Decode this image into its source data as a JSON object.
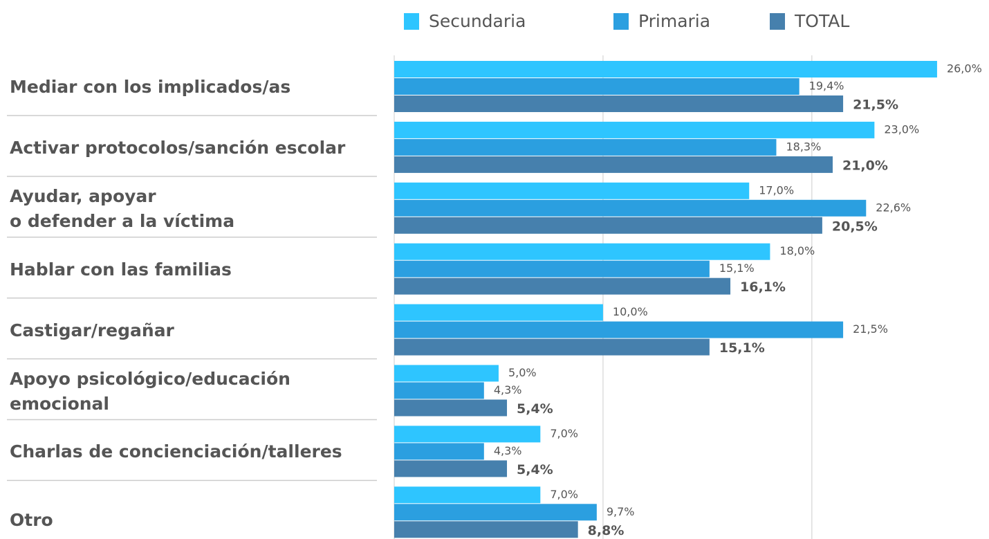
{
  "chart_data": {
    "type": "bar",
    "orientation": "horizontal",
    "categories": [
      "Mediar con los implicados/as",
      "Activar protocolos/sanción escolar",
      "Ayudar, apoyar\no defender a la víctima",
      "Hablar con las familias",
      "Castigar/regañar",
      "Apoyo psicológico/educación\nemocional",
      "Charlas de concienciación/talleres",
      "Otro"
    ],
    "series": [
      {
        "name": "Secundaria",
        "color": "#2ec5ff",
        "values": [
          26.0,
          23.0,
          17.0,
          18.0,
          10.0,
          5.0,
          7.0,
          7.0
        ],
        "value_labels": [
          "26,0%",
          "23,0%",
          "17,0%",
          "18,0%",
          "10,0%",
          "5,0%",
          "7,0%",
          "7,0%"
        ]
      },
      {
        "name": "Primaria",
        "color": "#2b9fe0",
        "values": [
          19.4,
          18.3,
          22.6,
          15.1,
          21.5,
          4.3,
          4.3,
          9.7
        ],
        "value_labels": [
          "19,4%",
          "18,3%",
          "22,6%",
          "15,1%",
          "21,5%",
          "4,3%",
          "4,3%",
          "9,7%"
        ]
      },
      {
        "name": "TOTAL",
        "color": "#4680ad",
        "values": [
          21.5,
          21.0,
          20.5,
          16.1,
          15.1,
          5.4,
          5.4,
          8.8
        ],
        "value_labels": [
          "21,5%",
          "21,0%",
          "20,5%",
          "16,1%",
          "15,1%",
          "5,4%",
          "5,4%",
          "8,8%"
        ]
      }
    ],
    "xlim": [
      0,
      28
    ],
    "xticks": [
      0,
      10,
      20
    ],
    "grid": true,
    "legend": "top"
  }
}
